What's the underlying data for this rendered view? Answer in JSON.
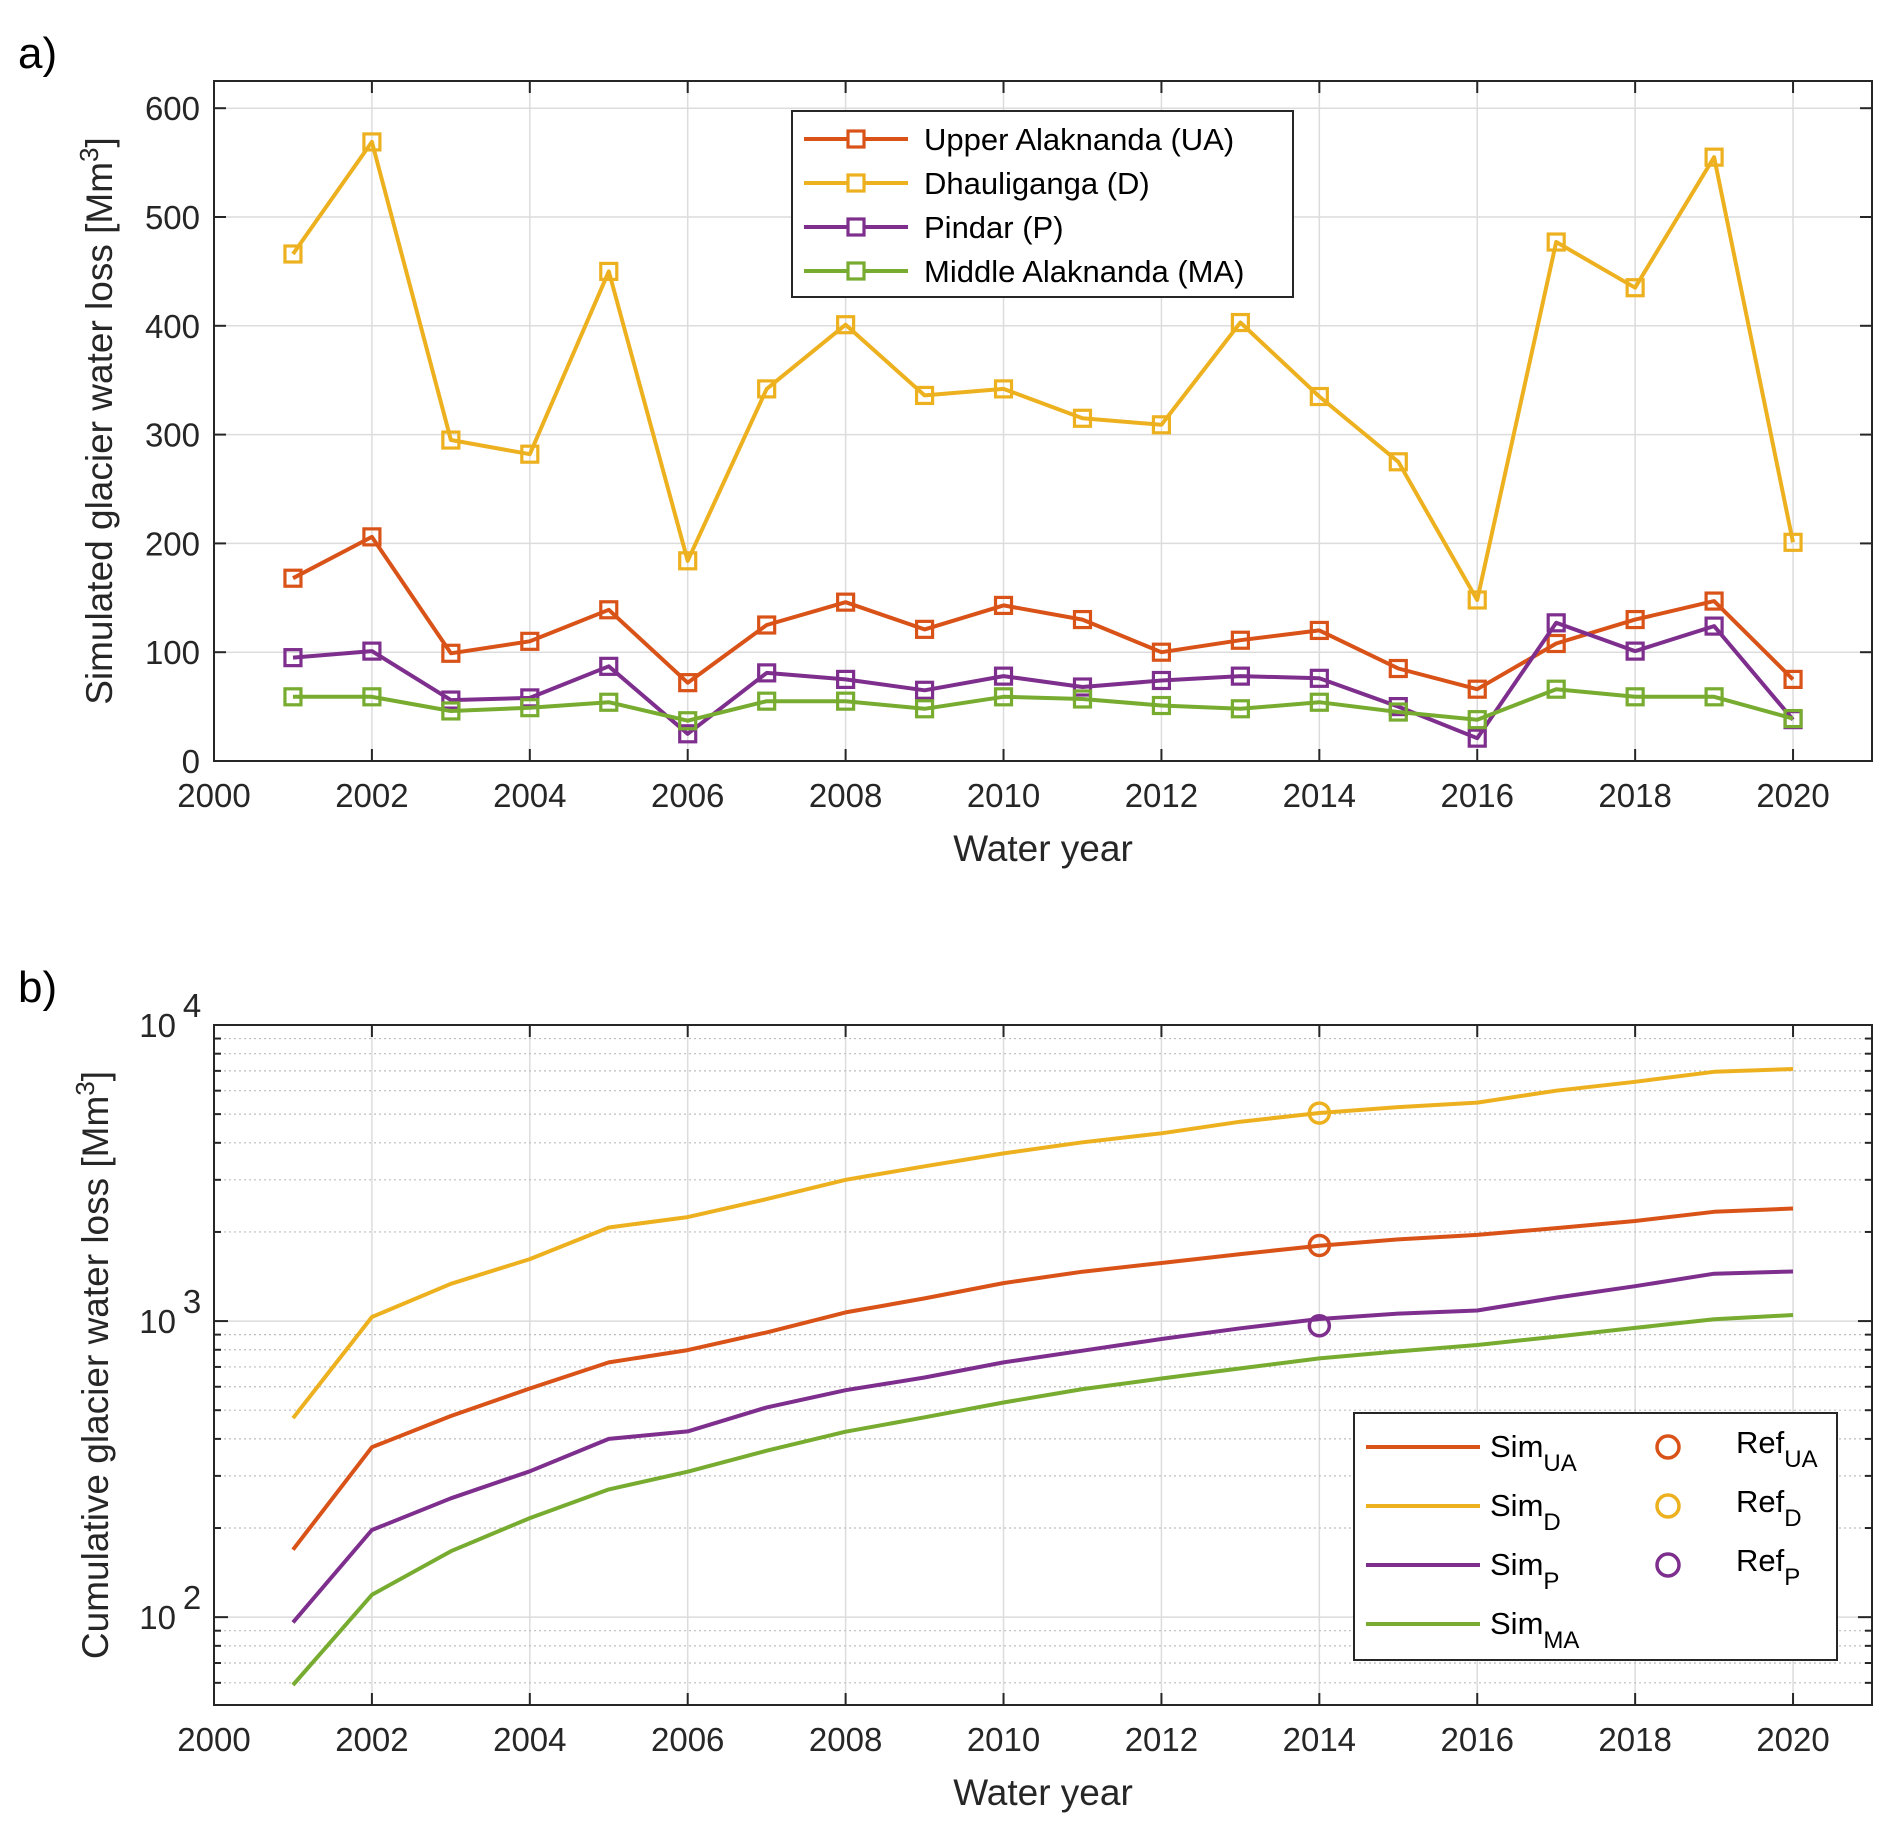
{
  "chart_data": [
    {
      "panel_label": "a)",
      "type": "line",
      "title": "",
      "xlabel": "Water year",
      "ylabel": "Simulated glacier water loss [Mm³]",
      "ylabel_parts": {
        "main": "Simulated glacier water loss [Mm",
        "sup": "3",
        "tail": "]"
      },
      "xlim": [
        2000,
        2021
      ],
      "ylim": [
        0,
        625
      ],
      "yscale": "linear",
      "grid": true,
      "legend_position": "top-center",
      "x_ticks": [
        2000,
        2002,
        2004,
        2006,
        2008,
        2010,
        2012,
        2014,
        2016,
        2018,
        2020
      ],
      "x_tick_labels": [
        "2000",
        "2002",
        "2004",
        "2006",
        "2008",
        "2010",
        "2012",
        "2014",
        "2016",
        "2018",
        "2020"
      ],
      "y_ticks": [
        0,
        100,
        200,
        300,
        400,
        500,
        600
      ],
      "y_tick_labels": [
        "0",
        "100",
        "200",
        "300",
        "400",
        "500",
        "600"
      ],
      "x": [
        2001,
        2002,
        2003,
        2004,
        2005,
        2006,
        2007,
        2008,
        2009,
        2010,
        2011,
        2012,
        2013,
        2014,
        2015,
        2016,
        2017,
        2018,
        2019,
        2020
      ],
      "marker": "square",
      "series": [
        {
          "name": "Upper Alaknanda (UA)",
          "color": "#D95319",
          "values": [
            168,
            206,
            99,
            110,
            139,
            72,
            125,
            146,
            121,
            143,
            130,
            100,
            111,
            120,
            85,
            66,
            108,
            130,
            147,
            75
          ]
        },
        {
          "name": "Dhauliganga (D)",
          "color": "#EDB120",
          "values": [
            466,
            569,
            295,
            282,
            450,
            184,
            342,
            401,
            336,
            342,
            315,
            309,
            403,
            335,
            275,
            148,
            477,
            435,
            555,
            201
          ]
        },
        {
          "name": "Pindar (P)",
          "color": "#7E2F8E",
          "values": [
            95,
            101,
            56,
            58,
            87,
            25,
            81,
            75,
            65,
            78,
            68,
            74,
            78,
            76,
            50,
            21,
            127,
            101,
            124,
            38
          ]
        },
        {
          "name": "Middle Alaknanda (MA)",
          "color": "#77AC30",
          "values": [
            59,
            59,
            46,
            49,
            54,
            37,
            55,
            55,
            48,
            59,
            57,
            51,
            48,
            54,
            45,
            38,
            66,
            59,
            59,
            39
          ]
        }
      ]
    },
    {
      "panel_label": "b)",
      "type": "line",
      "title": "",
      "xlabel": "Water year",
      "ylabel": "Cumulative glacier water loss [Mm³]",
      "ylabel_parts": {
        "main": "Cumulative glacier water loss [Mm",
        "sup": "3",
        "tail": "]"
      },
      "xlim": [
        2000,
        2021
      ],
      "ylim": [
        50.5,
        10000
      ],
      "yscale": "log",
      "grid": true,
      "minor_grid": true,
      "legend_position": "bottom-right",
      "legend_columns": 2,
      "x_ticks": [
        2000,
        2002,
        2004,
        2006,
        2008,
        2010,
        2012,
        2014,
        2016,
        2018,
        2020
      ],
      "x_tick_labels": [
        "2000",
        "2002",
        "2004",
        "2006",
        "2008",
        "2010",
        "2012",
        "2014",
        "2016",
        "2018",
        "2020"
      ],
      "y_ticks": [
        100,
        1000,
        10000
      ],
      "y_tick_labels": [
        {
          "base": "10",
          "exp": "2"
        },
        {
          "base": "10",
          "exp": "3"
        },
        {
          "base": "10",
          "exp": "4"
        }
      ],
      "x": [
        2001,
        2002,
        2003,
        2004,
        2005,
        2006,
        2007,
        2008,
        2009,
        2010,
        2011,
        2012,
        2013,
        2014,
        2015,
        2016,
        2017,
        2018,
        2019,
        2020
      ],
      "series": [
        {
          "name": "Sim_UA",
          "label": {
            "base": "Sim",
            "sub": "UA"
          },
          "color": "#D95319",
          "values": [
            169,
            375,
            478,
            592,
            725,
            798,
            916,
            1070,
            1193,
            1344,
            1468,
            1571,
            1684,
            1797,
            1888,
            1955,
            2060,
            2177,
            2339,
            2400
          ]
        },
        {
          "name": "Sim_D",
          "label": {
            "base": "Sim",
            "sub": "D"
          },
          "color": "#EDB120",
          "values": [
            470,
            1032,
            1336,
            1619,
            2070,
            2245,
            2583,
            3000,
            3333,
            3684,
            4016,
            4306,
            4713,
            5045,
            5280,
            5470,
            6000,
            6430,
            6950,
            7100
          ]
        },
        {
          "name": "Sim_P",
          "label": {
            "base": "Sim",
            "sub": "P"
          },
          "color": "#7E2F8E",
          "values": [
            96,
            197,
            252,
            311,
            400,
            424,
            511,
            584,
            645,
            725,
            794,
            870,
            945,
            1016,
            1060,
            1086,
            1200,
            1312,
            1445,
            1470
          ]
        },
        {
          "name": "Sim_MA",
          "label": {
            "base": "Sim",
            "sub": "MA"
          },
          "color": "#77AC30",
          "values": [
            59,
            119,
            167,
            216,
            270,
            310,
            365,
            423,
            473,
            531,
            589,
            640,
            692,
            748,
            790,
            830,
            886,
            948,
            1014,
            1048
          ]
        }
      ],
      "reference_points": [
        {
          "name": "Ref_UA",
          "label": {
            "base": "Ref",
            "sub": "UA"
          },
          "color": "#D95319",
          "x": 2014,
          "y": 1800
        },
        {
          "name": "Ref_D",
          "label": {
            "base": "Ref",
            "sub": "D"
          },
          "color": "#EDB120",
          "x": 2014,
          "y": 5040
        },
        {
          "name": "Ref_P",
          "label": {
            "base": "Ref",
            "sub": "P"
          },
          "color": "#7E2F8E",
          "x": 2014,
          "y": 964
        }
      ]
    }
  ]
}
